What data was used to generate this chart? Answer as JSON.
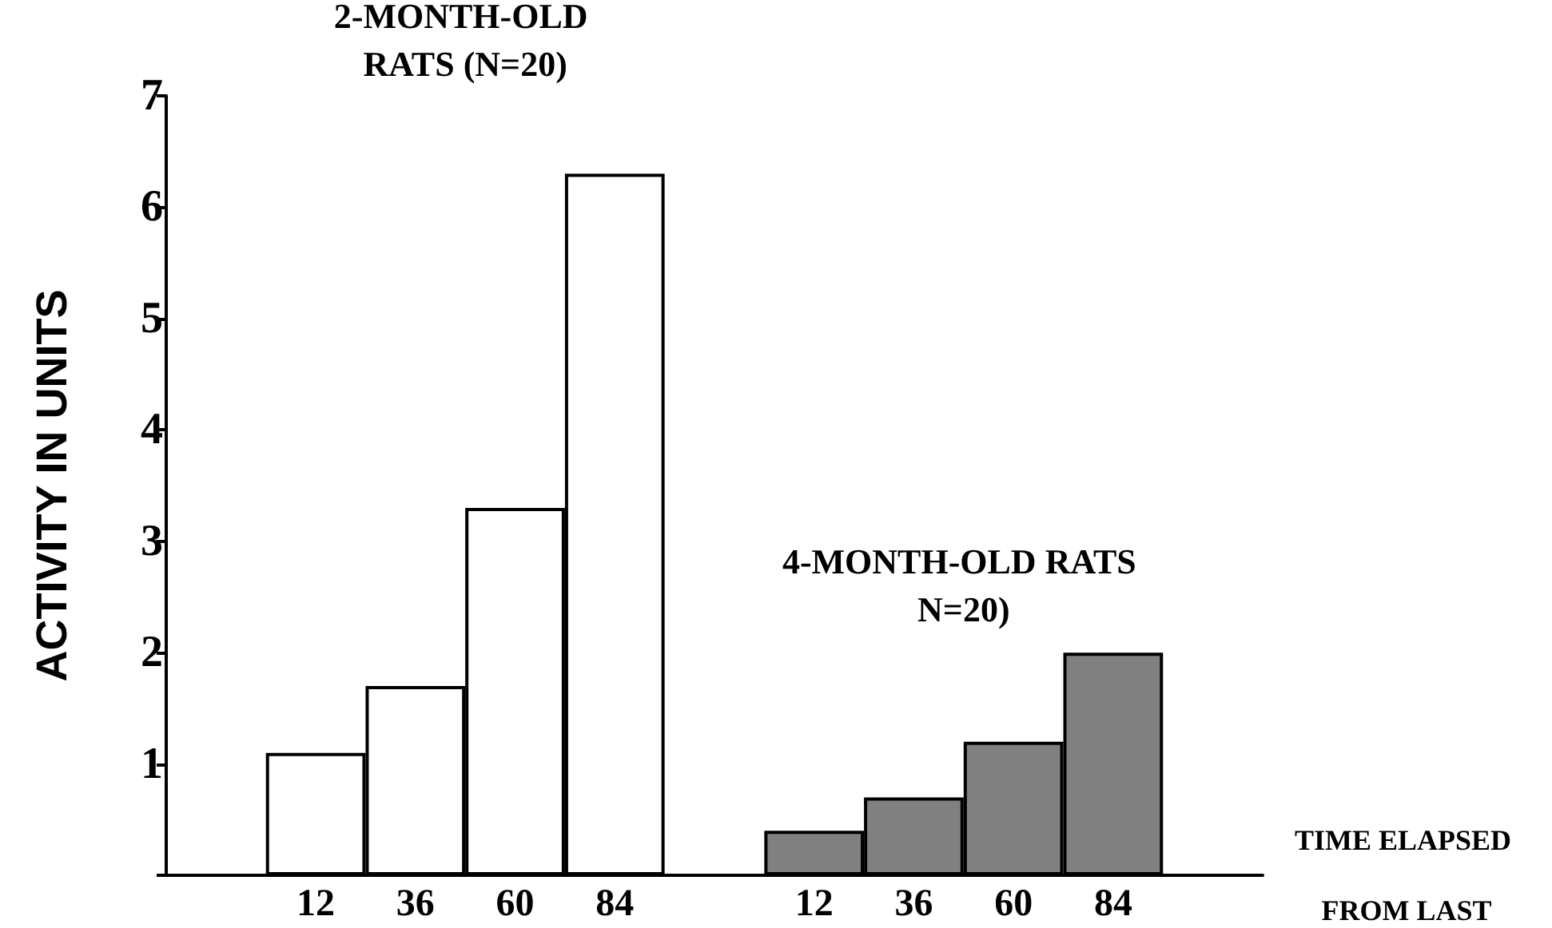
{
  "chart_data": {
    "type": "bar",
    "xlabel": "TIME ELAPSED FROM LAST",
    "ylabel": "ACTIVITY IN UNITS",
    "categories": [
      null,
      "12",
      "36",
      "60",
      "84",
      null,
      "12",
      "36",
      "60",
      "84",
      null
    ],
    "series": [
      {
        "name": "2-MONTH-OLD RATS (N=20)",
        "color": "#ffffff",
        "values": [
          null,
          1.1,
          1.7,
          3.3,
          6.3,
          null,
          null,
          null,
          null,
          null,
          null
        ]
      },
      {
        "name": "4-MONTH-OLD RATS N=20)",
        "color": "#808080",
        "values": [
          null,
          null,
          null,
          null,
          null,
          null,
          0.4,
          0.7,
          1.2,
          2.0,
          null
        ]
      }
    ],
    "ylim": [
      0,
      7
    ],
    "yticks": [
      {
        "value": 0,
        "label": null
      },
      1,
      2,
      3,
      4,
      5,
      6,
      7
    ],
    "grid": false,
    "legend": false
  }
}
